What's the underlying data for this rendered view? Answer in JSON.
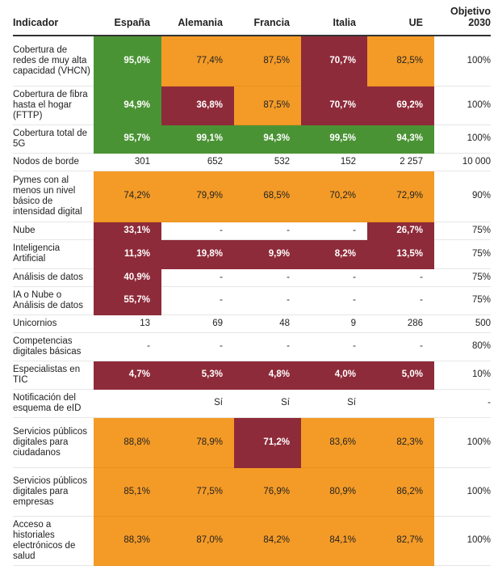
{
  "headers": [
    "Indicador",
    "España",
    "Alemania",
    "Francia",
    "Italia",
    "UE",
    "Objetivo 2030"
  ],
  "colors": {
    "green": "#4a9335",
    "orange": "#f49b27",
    "red": "#8e2b3a"
  },
  "rows": [
    {
      "indicator": "Cobertura de redes de muy alta capacidad (VHCN)",
      "values": [
        "95,0%",
        "77,4%",
        "87,5%",
        "70,7%",
        "82,5%"
      ],
      "status": [
        "green",
        "orange",
        "orange",
        "red",
        "orange"
      ],
      "target": "100%"
    },
    {
      "indicator": "Cobertura de fibra hasta el hogar (FTTP)",
      "values": [
        "94,9%",
        "36,8%",
        "87,5%",
        "70,7%",
        "69,2%"
      ],
      "status": [
        "green",
        "red",
        "orange",
        "red",
        "red"
      ],
      "target": "100%"
    },
    {
      "indicator": "Cobertura total de 5G",
      "values": [
        "95,7%",
        "99,1%",
        "94,3%",
        "99,5%",
        "94,3%"
      ],
      "status": [
        "green",
        "green",
        "green",
        "green",
        "green"
      ],
      "target": "100%"
    },
    {
      "indicator": "Nodos de borde",
      "values": [
        "301",
        "652",
        "532",
        "152",
        "2 257"
      ],
      "status": [
        "",
        "",
        "",
        "",
        ""
      ],
      "target": "10 000"
    },
    {
      "indicator": "Pymes con al menos un nivel básico de intensidad digital",
      "values": [
        "74,2%",
        "79,9%",
        "68,5%",
        "70,2%",
        "72,9%"
      ],
      "status": [
        "orange",
        "orange",
        "orange",
        "orange",
        "orange"
      ],
      "target": "90%"
    },
    {
      "indicator": "Nube",
      "values": [
        "33,1%",
        "-",
        "-",
        "-",
        "26,7%"
      ],
      "status": [
        "red",
        "",
        "",
        "",
        "red"
      ],
      "target": "75%"
    },
    {
      "indicator": "Inteligencia Artificial",
      "values": [
        "11,3%",
        "19,8%",
        "9,9%",
        "8,2%",
        "13,5%"
      ],
      "status": [
        "red",
        "red",
        "red",
        "red",
        "red"
      ],
      "target": "75%"
    },
    {
      "indicator": "Análisis de datos",
      "values": [
        "40,9%",
        "-",
        "-",
        "-",
        "-"
      ],
      "status": [
        "red",
        "",
        "",
        "",
        ""
      ],
      "target": "75%"
    },
    {
      "indicator": "IA o Nube o Análisis de datos",
      "values": [
        "55,7%",
        "-",
        "-",
        "-",
        "-"
      ],
      "status": [
        "red",
        "",
        "",
        "",
        ""
      ],
      "target": "75%"
    },
    {
      "indicator": "Unicornios",
      "values": [
        "13",
        "69",
        "48",
        "9",
        "286"
      ],
      "status": [
        "",
        "",
        "",
        "",
        ""
      ],
      "target": "500"
    },
    {
      "indicator": "Competencias digitales básicas",
      "values": [
        "-",
        "-",
        "-",
        "-",
        "-"
      ],
      "status": [
        "",
        "",
        "",
        "",
        ""
      ],
      "target": "80%"
    },
    {
      "indicator": "Especialistas en TIC",
      "values": [
        "4,7%",
        "5,3%",
        "4,8%",
        "4,0%",
        "5,0%"
      ],
      "status": [
        "red",
        "red",
        "red",
        "red",
        "red"
      ],
      "target": "10%"
    },
    {
      "indicator": "Notificación del esquema de eID",
      "values": [
        "",
        "Sí",
        "Sí",
        "Sí",
        ""
      ],
      "status": [
        "",
        "",
        "",
        "",
        ""
      ],
      "target": "-"
    },
    {
      "indicator": "Servicios públicos digitales para ciudadanos",
      "values": [
        "88,8%",
        "78,9%",
        "71,2%",
        "83,6%",
        "82,3%"
      ],
      "status": [
        "orange",
        "orange",
        "red",
        "orange",
        "orange"
      ],
      "target": "100%"
    },
    {
      "indicator": "Servicios públicos digitales para empresas",
      "values": [
        "85,1%",
        "77,5%",
        "76,9%",
        "80,9%",
        "86,2%"
      ],
      "status": [
        "orange",
        "orange",
        "orange",
        "orange",
        "orange"
      ],
      "target": "100%"
    },
    {
      "indicator": "Acceso a historiales electrónicos de salud",
      "values": [
        "88,3%",
        "87,0%",
        "84,2%",
        "84,1%",
        "82,7%"
      ],
      "status": [
        "orange",
        "orange",
        "orange",
        "orange",
        "orange"
      ],
      "target": "100%"
    }
  ]
}
